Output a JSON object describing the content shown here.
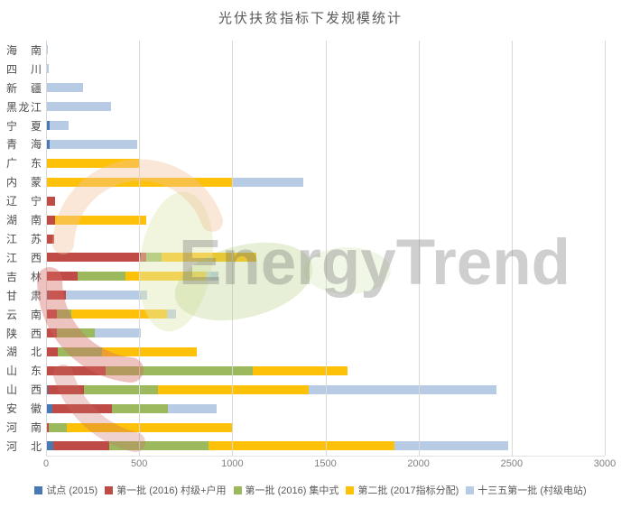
{
  "title": "光伏扶贫指标下发规模统计",
  "watermark": {
    "text": "EnergyTrend"
  },
  "chart_data": {
    "type": "bar",
    "orientation": "horizontal",
    "stacked": true,
    "title": "光伏扶贫指标下发规模统计",
    "unit_note": "MW (estimated from axis)",
    "categories_top_to_bottom": [
      "海南",
      "四川",
      "新疆",
      "黑龙江",
      "宁夏",
      "青海",
      "广东",
      "内蒙",
      "辽宁",
      "湖南",
      "江苏",
      "江西",
      "吉林",
      "甘肃",
      "云南",
      "陕西",
      "湖北",
      "山东",
      "山西",
      "安徽",
      "河南",
      "河北"
    ],
    "series": [
      {
        "name": "试点 (2015)",
        "color": "#4879b2",
        "values": [
          0,
          0,
          0,
          0,
          20,
          20,
          0,
          0,
          0,
          0,
          0,
          0,
          0,
          10,
          0,
          0,
          0,
          0,
          10,
          35,
          0,
          40
        ]
      },
      {
        "name": "第一批 (2016) 村级+户用",
        "color": "#bf4b47",
        "values": [
          0,
          0,
          0,
          0,
          0,
          0,
          0,
          0,
          50,
          50,
          45,
          540,
          170,
          95,
          60,
          60,
          65,
          320,
          195,
          320,
          15,
          300
        ]
      },
      {
        "name": "第一批 (2016) 集中式",
        "color": "#9cba5d",
        "values": [
          0,
          0,
          0,
          0,
          0,
          0,
          0,
          0,
          0,
          0,
          0,
          80,
          255,
          0,
          75,
          200,
          235,
          790,
          395,
          300,
          95,
          530
        ]
      },
      {
        "name": "第二批 (2017指标分配)",
        "color": "#fdc10a",
        "values": [
          0,
          0,
          0,
          0,
          0,
          0,
          500,
          1000,
          0,
          490,
          0,
          510,
          435,
          0,
          515,
          0,
          510,
          510,
          810,
          0,
          890,
          1000
        ]
      },
      {
        "name": "十三五第一批 (村级电站)",
        "color": "#b7cce4",
        "values": [
          10,
          15,
          200,
          350,
          100,
          470,
          0,
          380,
          0,
          0,
          0,
          0,
          65,
          440,
          50,
          250,
          0,
          0,
          1010,
          260,
          0,
          610
        ]
      }
    ],
    "totals_top_to_bottom": [
      10,
      15,
      200,
      350,
      120,
      490,
      500,
      1380,
      50,
      540,
      45,
      1130,
      925,
      545,
      700,
      510,
      810,
      1620,
      2420,
      915,
      1000,
      2480
    ],
    "xlim": [
      0,
      3000
    ],
    "xticks": [
      0,
      500,
      1000,
      1500,
      2000,
      2500,
      3000
    ],
    "grid": true,
    "legend_position": "bottom",
    "colors": {
      "gridline": "#d9d9d9",
      "tick_label": "#7f7f7f",
      "category_label": "#4c4c4c",
      "title_text": "#595959",
      "legend_text": "#595959",
      "watermark_gray": "#c9c9c9"
    }
  }
}
